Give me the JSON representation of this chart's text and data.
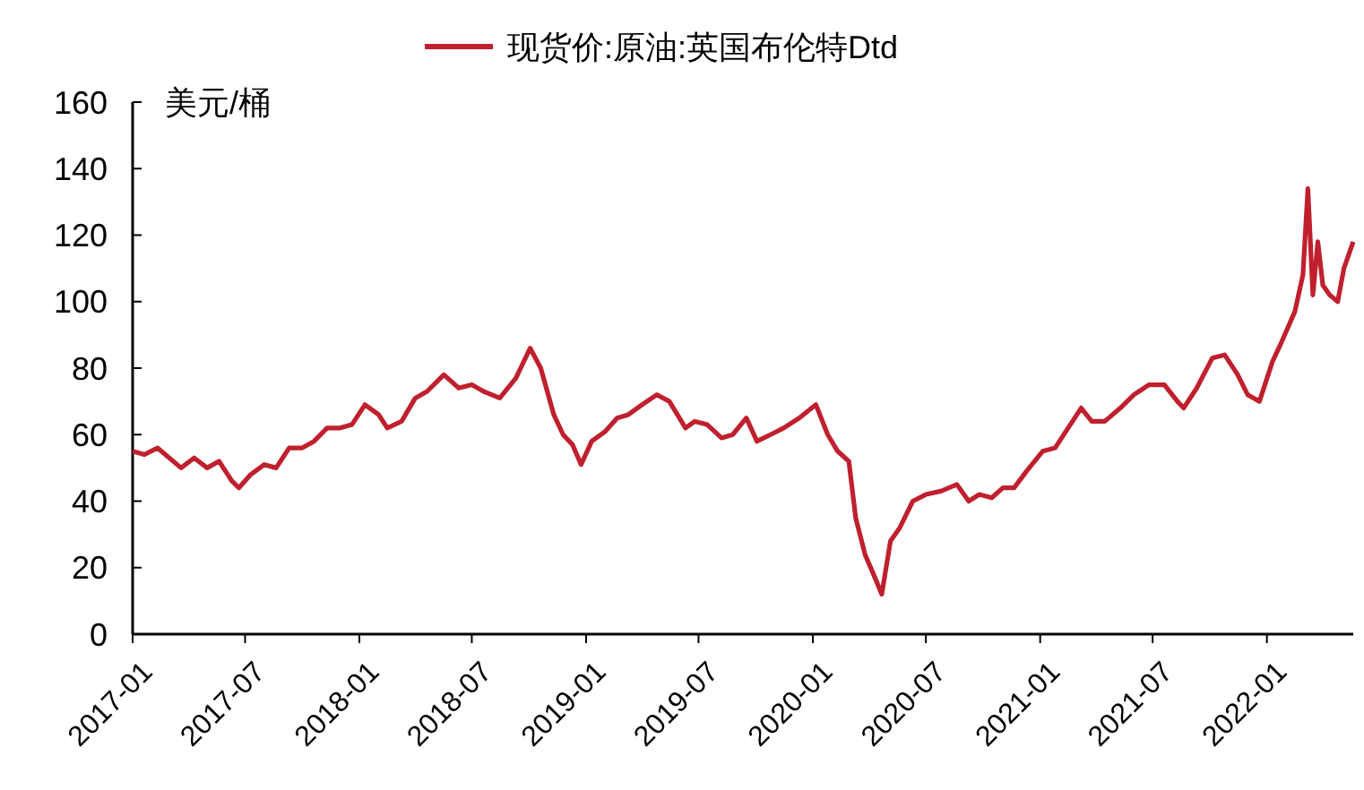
{
  "chart_data": {
    "type": "line",
    "ylabel": "美元/桶",
    "legend": "top",
    "grid": false,
    "line_style": "solid",
    "xlim": [
      "2017-01-01",
      "2022-05-20"
    ],
    "ylim": [
      0,
      160
    ],
    "yticks": [
      0,
      20,
      40,
      60,
      80,
      100,
      120,
      140,
      160
    ],
    "xticks": [
      {
        "value": "2017-01-01",
        "label": "2017-01"
      },
      {
        "value": "2017-07-01",
        "label": "2017-07"
      },
      {
        "value": "2018-01-01",
        "label": "2018-01"
      },
      {
        "value": "2018-07-01",
        "label": "2018-07"
      },
      {
        "value": "2019-01-01",
        "label": "2019-01"
      },
      {
        "value": "2019-07-01",
        "label": "2019-07"
      },
      {
        "value": "2020-01-01",
        "label": "2020-01"
      },
      {
        "value": "2020-07-01",
        "label": "2020-07"
      },
      {
        "value": "2021-01-01",
        "label": "2021-01"
      },
      {
        "value": "2021-07-01",
        "label": "2021-07"
      },
      {
        "value": "2022-01-01",
        "label": "2022-01"
      }
    ],
    "x": [
      "2017-01-01",
      "2017-01-20",
      "2017-02-10",
      "2017-03-01",
      "2017-03-20",
      "2017-04-10",
      "2017-05-01",
      "2017-05-20",
      "2017-06-10",
      "2017-06-21",
      "2017-07-10",
      "2017-08-01",
      "2017-08-20",
      "2017-09-10",
      "2017-10-01",
      "2017-10-20",
      "2017-11-10",
      "2017-12-01",
      "2017-12-20",
      "2018-01-10",
      "2018-02-01",
      "2018-02-15",
      "2018-03-10",
      "2018-04-01",
      "2018-04-20",
      "2018-05-17",
      "2018-06-10",
      "2018-07-01",
      "2018-07-20",
      "2018-08-15",
      "2018-09-10",
      "2018-10-03",
      "2018-10-20",
      "2018-11-10",
      "2018-11-25",
      "2018-12-10",
      "2018-12-24",
      "2019-01-10",
      "2019-02-01",
      "2019-02-20",
      "2019-03-10",
      "2019-04-01",
      "2019-04-25",
      "2019-05-15",
      "2019-06-10",
      "2019-06-25",
      "2019-07-15",
      "2019-08-07",
      "2019-08-25",
      "2019-09-16",
      "2019-10-03",
      "2019-10-25",
      "2019-11-15",
      "2019-12-10",
      "2020-01-06",
      "2020-01-25",
      "2020-02-10",
      "2020-02-28",
      "2020-03-10",
      "2020-03-25",
      "2020-04-10",
      "2020-04-21",
      "2020-05-05",
      "2020-05-20",
      "2020-06-10",
      "2020-07-01",
      "2020-07-25",
      "2020-08-20",
      "2020-09-08",
      "2020-09-25",
      "2020-10-15",
      "2020-11-02",
      "2020-11-20",
      "2020-12-10",
      "2021-01-05",
      "2021-01-25",
      "2021-02-15",
      "2021-03-08",
      "2021-03-25",
      "2021-04-15",
      "2021-05-10",
      "2021-06-01",
      "2021-06-25",
      "2021-07-20",
      "2021-08-10",
      "2021-08-20",
      "2021-09-10",
      "2021-10-05",
      "2021-10-25",
      "2021-11-15",
      "2021-12-01",
      "2021-12-20",
      "2022-01-10",
      "2022-01-25",
      "2022-02-15",
      "2022-02-28",
      "2022-03-08",
      "2022-03-16",
      "2022-03-24",
      "2022-04-01",
      "2022-04-12",
      "2022-04-25",
      "2022-05-05",
      "2022-05-20"
    ],
    "series": [
      {
        "name": "现货价:原油:英国布伦特Dtd",
        "color": "#c0202e",
        "values": [
          55,
          54,
          56,
          53,
          50,
          53,
          50,
          52,
          46,
          44,
          48,
          51,
          50,
          56,
          56,
          58,
          62,
          62,
          63,
          69,
          66,
          62,
          64,
          71,
          73,
          78,
          74,
          75,
          73,
          71,
          77,
          86,
          80,
          66,
          60,
          57,
          51,
          58,
          61,
          65,
          66,
          69,
          72,
          70,
          62,
          64,
          63,
          59,
          60,
          65,
          58,
          60,
          62,
          65,
          69,
          60,
          55,
          52,
          35,
          24,
          17,
          12,
          28,
          32,
          40,
          42,
          43,
          45,
          40,
          42,
          41,
          44,
          44,
          49,
          55,
          56,
          62,
          68,
          64,
          64,
          68,
          72,
          75,
          75,
          70,
          68,
          74,
          83,
          84,
          78,
          72,
          70,
          82,
          88,
          97,
          108,
          134,
          102,
          118,
          105,
          102,
          100,
          110,
          118
        ]
      }
    ]
  }
}
